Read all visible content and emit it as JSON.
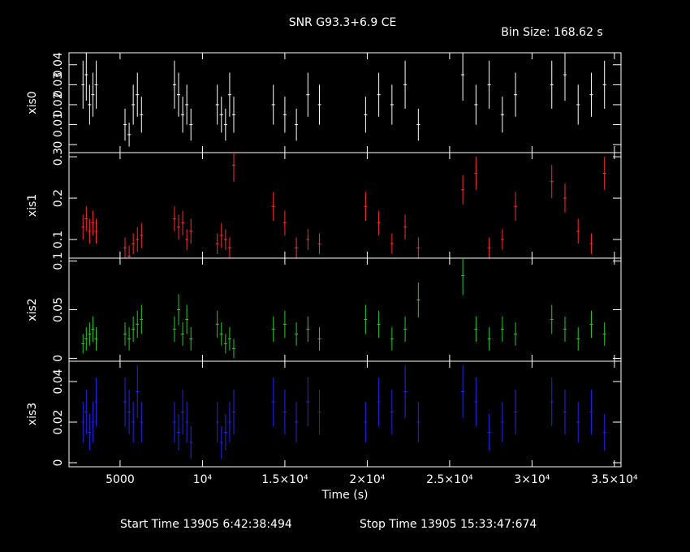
{
  "chart_data": {
    "type": "errorbar",
    "title": "SNR G93.3+6.9 CE",
    "xlabel": "Time (s)",
    "annotations": [
      "Bin Size: 168.62 s",
      "Start Time 13905  6:42:38:494",
      "Stop Time 13905 15:33:47:674"
    ],
    "xlim": [
      1900,
      35400
    ],
    "xticks": [
      5000,
      {
        "value": 10000,
        "label": "10⁴"
      },
      {
        "value": 15000,
        "label": "1.5×10⁴"
      },
      {
        "value": 20000,
        "label": "2×10⁴"
      },
      {
        "value": 25000,
        "label": "2.5×10⁴"
      },
      {
        "value": 30000,
        "label": "3×10⁴"
      },
      {
        "value": 35000,
        "label": "3.5×10⁴"
      }
    ],
    "x": [
      2750,
      2950,
      3150,
      3350,
      3550,
      5300,
      5550,
      5800,
      6050,
      6300,
      8300,
      8550,
      8800,
      9050,
      9300,
      10900,
      11150,
      11400,
      11650,
      11900,
      14300,
      15000,
      15700,
      16400,
      17100,
      19900,
      20700,
      21500,
      22300,
      23100,
      25800,
      26600,
      27400,
      28200,
      29000,
      31200,
      32000,
      32800,
      33600,
      34400
    ],
    "series": [
      {
        "name": "xis0",
        "color": "#ffffff",
        "ylim": [
          -0.004,
          0.046
        ],
        "yticks": [
          0,
          0.01,
          0.02,
          0.03,
          0.04
        ],
        "values": [
          0.03,
          0.035,
          0.02,
          0.025,
          0.03,
          0.01,
          0.005,
          0.02,
          0.025,
          0.015,
          0.03,
          0.025,
          0.015,
          0.02,
          0.01,
          0.02,
          0.015,
          0.01,
          0.025,
          0.015,
          0.02,
          0.015,
          0.01,
          0.025,
          0.02,
          0.015,
          0.025,
          0.02,
          0.03,
          0.01,
          0.035,
          0.02,
          0.03,
          0.015,
          0.025,
          0.03,
          0.035,
          0.02,
          0.025,
          0.03
        ],
        "errors": [
          0.012,
          0.013,
          0.01,
          0.011,
          0.012,
          0.008,
          0.006,
          0.01,
          0.011,
          0.009,
          0.012,
          0.011,
          0.009,
          0.01,
          0.008,
          0.01,
          0.009,
          0.008,
          0.011,
          0.009,
          0.01,
          0.009,
          0.008,
          0.011,
          0.01,
          0.009,
          0.011,
          0.01,
          0.012,
          0.008,
          0.013,
          0.01,
          0.012,
          0.009,
          0.011,
          0.012,
          0.013,
          0.01,
          0.011,
          0.012
        ]
      },
      {
        "name": "xis1",
        "color": "#ff2a2a",
        "ylim": [
          0.055,
          0.31
        ],
        "yticks": [
          0.1,
          0.2,
          0.3
        ],
        "values": [
          0.13,
          0.15,
          0.12,
          0.14,
          0.12,
          0.08,
          0.06,
          0.09,
          0.1,
          0.11,
          0.15,
          0.13,
          0.14,
          0.1,
          0.12,
          0.09,
          0.11,
          0.1,
          0.08,
          0.28,
          0.18,
          0.14,
          0.08,
          0.1,
          0.09,
          0.18,
          0.14,
          0.09,
          0.13,
          0.08,
          0.22,
          0.26,
          0.08,
          0.1,
          0.18,
          0.24,
          0.2,
          0.12,
          0.09,
          0.26
        ],
        "errors": [
          0.03,
          0.03,
          0.03,
          0.03,
          0.03,
          0.025,
          0.025,
          0.025,
          0.03,
          0.03,
          0.03,
          0.03,
          0.03,
          0.025,
          0.03,
          0.025,
          0.03,
          0.025,
          0.025,
          0.04,
          0.035,
          0.03,
          0.025,
          0.025,
          0.025,
          0.035,
          0.03,
          0.025,
          0.03,
          0.025,
          0.035,
          0.04,
          0.025,
          0.025,
          0.035,
          0.04,
          0.035,
          0.03,
          0.025,
          0.04
        ]
      },
      {
        "name": "xis2",
        "color": "#22cc22",
        "ylim": [
          -0.003,
          0.103
        ],
        "yticks": [
          0,
          0.05,
          0.1
        ],
        "values": [
          0.015,
          0.02,
          0.025,
          0.03,
          0.02,
          0.025,
          0.02,
          0.03,
          0.035,
          0.04,
          0.03,
          0.05,
          0.025,
          0.04,
          0.02,
          0.035,
          0.025,
          0.015,
          0.02,
          0.01,
          0.03,
          0.035,
          0.025,
          0.03,
          0.02,
          0.04,
          0.035,
          0.02,
          0.03,
          0.06,
          0.085,
          0.03,
          0.02,
          0.03,
          0.025,
          0.04,
          0.03,
          0.02,
          0.035,
          0.025
        ],
        "errors": [
          0.01,
          0.012,
          0.012,
          0.013,
          0.012,
          0.012,
          0.012,
          0.013,
          0.014,
          0.015,
          0.013,
          0.016,
          0.012,
          0.015,
          0.012,
          0.014,
          0.012,
          0.01,
          0.012,
          0.01,
          0.013,
          0.014,
          0.012,
          0.013,
          0.012,
          0.015,
          0.014,
          0.012,
          0.013,
          0.018,
          0.02,
          0.013,
          0.012,
          0.013,
          0.012,
          0.015,
          0.013,
          0.012,
          0.014,
          0.012
        ]
      },
      {
        "name": "xis3",
        "color": "#2222ee",
        "ylim": [
          -0.002,
          0.05
        ],
        "yticks": [
          0,
          0.02,
          0.04
        ],
        "values": [
          0.02,
          0.025,
          0.015,
          0.02,
          0.03,
          0.03,
          0.025,
          0.02,
          0.035,
          0.02,
          0.02,
          0.015,
          0.025,
          0.02,
          0.01,
          0.02,
          0.01,
          0.015,
          0.02,
          0.025,
          0.03,
          0.025,
          0.02,
          0.03,
          0.025,
          0.02,
          0.03,
          0.025,
          0.035,
          0.02,
          0.035,
          0.03,
          0.015,
          0.02,
          0.025,
          0.03,
          0.025,
          0.02,
          0.025,
          0.015
        ],
        "errors": [
          0.01,
          0.011,
          0.009,
          0.01,
          0.012,
          0.012,
          0.011,
          0.01,
          0.013,
          0.01,
          0.01,
          0.009,
          0.011,
          0.01,
          0.008,
          0.01,
          0.008,
          0.009,
          0.01,
          0.011,
          0.012,
          0.011,
          0.01,
          0.012,
          0.011,
          0.01,
          0.012,
          0.011,
          0.013,
          0.01,
          0.013,
          0.012,
          0.009,
          0.01,
          0.011,
          0.012,
          0.011,
          0.01,
          0.011,
          0.009
        ]
      }
    ]
  }
}
